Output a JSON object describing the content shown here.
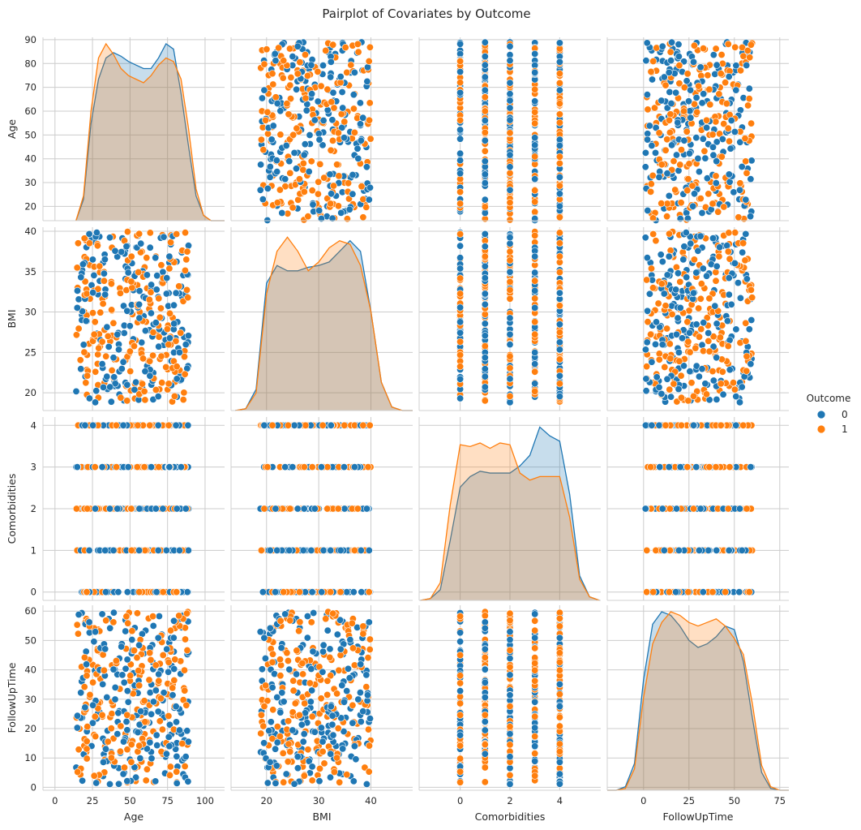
{
  "chart_data": {
    "type": "pairplot",
    "title": "Pairplot of Covariates by Outcome",
    "variables": [
      "Age",
      "BMI",
      "Comorbidities",
      "FollowUpTime"
    ],
    "axes": {
      "Age": {
        "label": "Age",
        "range": [
          14,
          89
        ],
        "xlim": [
          -8,
          113
        ],
        "ylim": [
          14,
          91
        ],
        "ticks": [
          0,
          25,
          50,
          75,
          100
        ],
        "yticks": [
          20,
          30,
          40,
          50,
          60,
          70,
          80,
          90
        ],
        "discrete": false
      },
      "BMI": {
        "label": "BMI",
        "range": [
          18.8,
          40
        ],
        "xlim": [
          13.2,
          48
        ],
        "ylim": [
          17.8,
          40.5
        ],
        "ticks": [
          20,
          30,
          40
        ],
        "yticks": [
          20,
          25,
          30,
          35,
          40
        ],
        "discrete": false
      },
      "Comorbidities": {
        "label": "Comorbidities",
        "range": [
          0,
          4
        ],
        "xlim": [
          -1.65,
          5.65
        ],
        "ylim": [
          -0.2,
          4.2
        ],
        "ticks": [
          0,
          2,
          4
        ],
        "yticks": [
          0,
          1,
          2,
          3,
          4
        ],
        "levels": [
          0,
          1,
          2,
          3,
          4
        ],
        "discrete": true
      },
      "FollowUpTime": {
        "label": "FollowUpTime",
        "range": [
          1,
          60
        ],
        "xlim": [
          -20,
          80
        ],
        "ylim": [
          -1,
          62
        ],
        "ticks": [
          0,
          25,
          50,
          75
        ],
        "yticks": [
          0,
          10,
          20,
          30,
          40,
          50,
          60
        ],
        "discrete": false
      }
    },
    "diagonal": "kde",
    "offdiagonal": "scatter",
    "n_points_per_group": [
      200,
      200
    ],
    "hue": "Outcome",
    "legend": {
      "title": "Outcome",
      "placement": "center-right",
      "entries": [
        {
          "label": "0",
          "color": "#1f77b4"
        },
        {
          "label": "1",
          "color": "#ff7f0e"
        }
      ]
    },
    "kde": {
      "Age": {
        "grid": [
          14,
          19,
          24,
          29,
          34,
          39,
          44,
          49,
          54,
          59,
          64,
          69,
          74,
          79,
          84,
          89,
          94,
          99,
          104,
          109,
          113
        ],
        "series": [
          {
            "name": "0",
            "values": [
              0.0,
              0.12,
              0.55,
              0.8,
              0.92,
              0.95,
              0.93,
              0.9,
              0.88,
              0.86,
              0.86,
              0.92,
              1.0,
              0.97,
              0.72,
              0.42,
              0.14,
              0.03,
              0.0,
              0.0,
              0.0
            ]
          },
          {
            "name": "1",
            "values": [
              0.0,
              0.14,
              0.62,
              0.92,
              1.0,
              0.94,
              0.86,
              0.82,
              0.8,
              0.78,
              0.82,
              0.88,
              0.92,
              0.9,
              0.8,
              0.52,
              0.18,
              0.03,
              0.0,
              0.0,
              0.0
            ]
          }
        ]
      },
      "BMI": {
        "grid": [
          14,
          16,
          18,
          20,
          22,
          24,
          26,
          28,
          30,
          32,
          34,
          36,
          38,
          40,
          42,
          44,
          46,
          48
        ],
        "series": [
          {
            "name": "0",
            "values": [
              0.0,
              0.01,
              0.12,
              0.72,
              0.82,
              0.79,
              0.79,
              0.81,
              0.82,
              0.84,
              0.9,
              0.96,
              0.9,
              0.56,
              0.16,
              0.02,
              0.0,
              0.0
            ]
          },
          {
            "name": "1",
            "values": [
              0.0,
              0.01,
              0.1,
              0.66,
              0.9,
              0.98,
              0.9,
              0.79,
              0.84,
              0.92,
              0.96,
              0.94,
              0.82,
              0.56,
              0.16,
              0.02,
              0.0,
              0.0
            ]
          }
        ]
      },
      "Comorbidities": {
        "grid": [
          -1.6,
          -1.2,
          -0.8,
          -0.4,
          0.0,
          0.4,
          0.8,
          1.2,
          1.6,
          2.0,
          2.4,
          2.8,
          3.2,
          3.6,
          4.0,
          4.4,
          4.8,
          5.2,
          5.6
        ],
        "series": [
          {
            "name": "0",
            "values": [
              0.0,
              0.01,
              0.06,
              0.34,
              0.64,
              0.7,
              0.73,
              0.72,
              0.72,
              0.72,
              0.76,
              0.82,
              0.98,
              0.93,
              0.9,
              0.6,
              0.14,
              0.02,
              0.0
            ]
          },
          {
            "name": "1",
            "values": [
              0.0,
              0.01,
              0.1,
              0.54,
              0.88,
              0.87,
              0.89,
              0.86,
              0.89,
              0.88,
              0.72,
              0.68,
              0.7,
              0.7,
              0.7,
              0.47,
              0.12,
              0.02,
              0.0
            ]
          }
        ]
      },
      "FollowUpTime": {
        "grid": [
          -20,
          -15,
          -10,
          -5,
          0,
          5,
          10,
          15,
          20,
          25,
          30,
          35,
          40,
          45,
          50,
          55,
          60,
          65,
          70,
          75,
          80
        ],
        "series": [
          {
            "name": "0",
            "values": [
              0.0,
              0.0,
              0.02,
              0.15,
              0.62,
              0.93,
              1.0,
              0.98,
              0.92,
              0.84,
              0.8,
              0.82,
              0.86,
              0.92,
              0.9,
              0.72,
              0.4,
              0.1,
              0.01,
              0.0,
              0.0
            ]
          },
          {
            "name": "1",
            "values": [
              0.0,
              0.0,
              0.01,
              0.12,
              0.52,
              0.82,
              0.94,
              1.0,
              0.98,
              0.94,
              0.92,
              0.94,
              0.96,
              0.92,
              0.85,
              0.76,
              0.48,
              0.14,
              0.02,
              0.0,
              0.0
            ]
          }
        ]
      }
    }
  },
  "style": {
    "colors": {
      "0": "#1f77b4",
      "1": "#ff7f0e",
      "grid": "#cccccc",
      "spine": "#d0d0d0",
      "text": "#262626",
      "marker_edge": "#ffffff"
    }
  }
}
